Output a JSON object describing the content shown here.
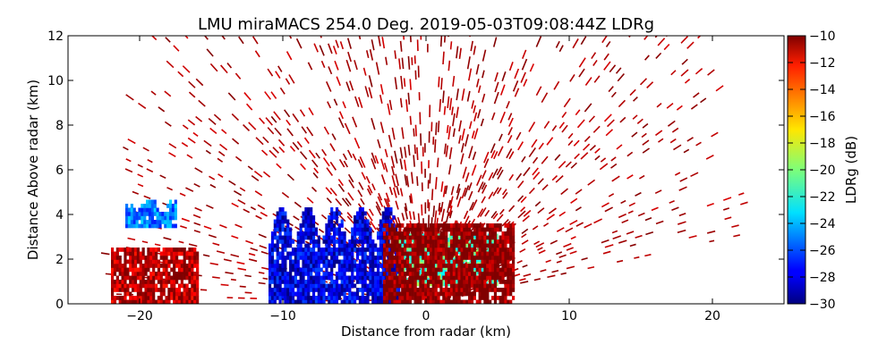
{
  "chart_data": {
    "type": "heatmap",
    "title": "LMU miraMACS 254.0 Deg. 2019-05-03T09:08:44Z  LDRg",
    "xlabel": "Distance from radar (km)",
    "ylabel": "Distance Above radar  (km)",
    "xlim": [
      -25,
      25
    ],
    "ylim": [
      0,
      12
    ],
    "x_ticks": [
      -20,
      -10,
      0,
      10,
      20
    ],
    "y_ticks": [
      0,
      2,
      4,
      6,
      8,
      10,
      12
    ],
    "colorbar": {
      "label": "LDRg (dB)",
      "range": [
        -30,
        -10
      ],
      "ticks": [
        -10,
        -12,
        -14,
        -16,
        -18,
        -20,
        -22,
        -24,
        -26,
        -28,
        -30
      ],
      "colormap": "jet"
    },
    "regions": [
      {
        "description": "low LDRg region",
        "x_range": [
          -11,
          -2
        ],
        "y_range": [
          0,
          4.3
        ],
        "ldr_db": -28
      },
      {
        "description": "mid LDRg band",
        "x_range": [
          -2,
          5
        ],
        "y_range": [
          0.8,
          3.0
        ],
        "ldr_db": -21
      },
      {
        "description": "low LDRg patch",
        "x_range": [
          -21,
          -17.5
        ],
        "y_range": [
          3.4,
          4.6
        ],
        "ldr_db": -25
      },
      {
        "description": "high LDRg near radar",
        "x_range": [
          -3,
          6
        ],
        "y_range": [
          0,
          3.5
        ],
        "ldr_db": -10
      },
      {
        "description": "high LDRg lower-left",
        "x_range": [
          -22,
          -16
        ],
        "y_range": [
          0,
          2.5
        ],
        "ldr_db": -11
      },
      {
        "description": "sparse high LDRg speckle",
        "x_range": [
          -22,
          22
        ],
        "y_range": [
          0,
          12
        ],
        "ldr_db": -10
      }
    ]
  }
}
